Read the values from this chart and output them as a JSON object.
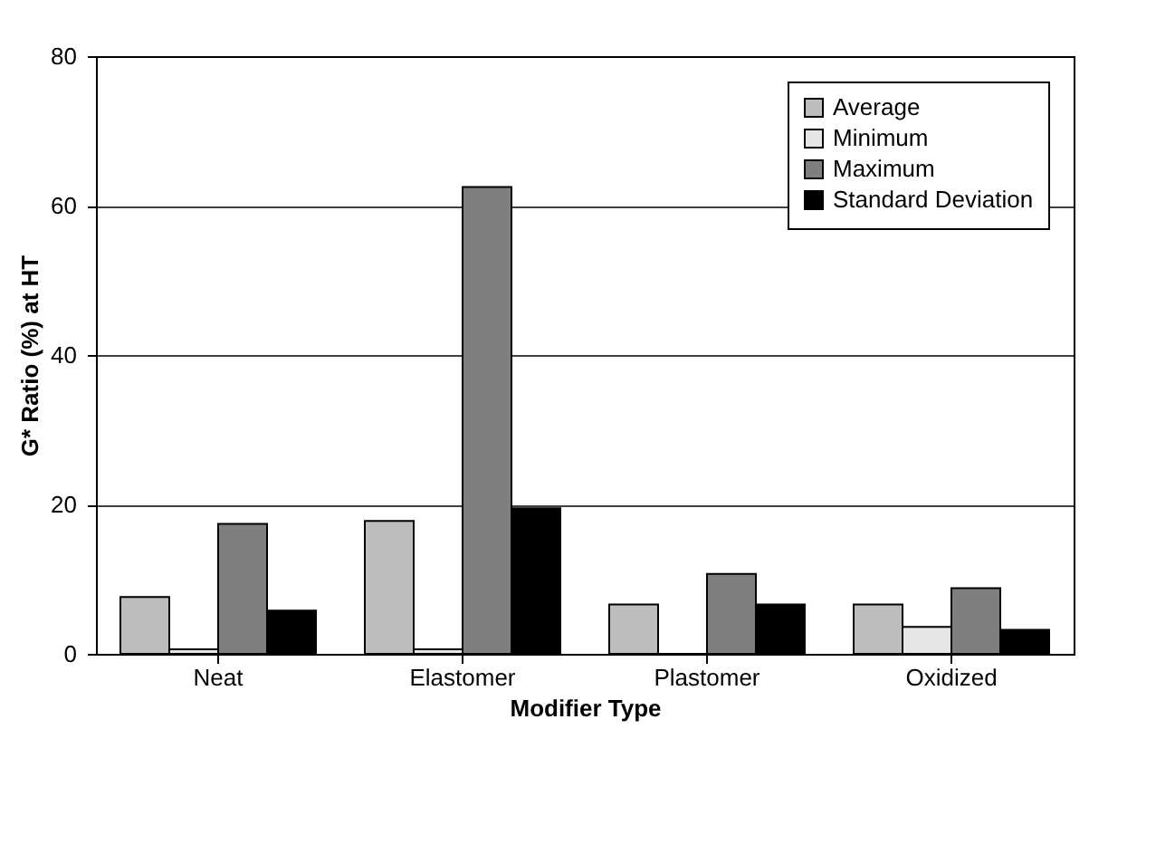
{
  "chart_data": {
    "type": "bar",
    "xlabel": "Modifier Type",
    "ylabel": "G* Ratio (%) at HT",
    "categories": [
      "Neat",
      "Elastomer",
      "Plastomer",
      "Oxidized"
    ],
    "series": [
      {
        "name": "Average",
        "color": "#bdbdbd",
        "values": [
          7.6,
          17.8,
          6.6,
          6.6
        ]
      },
      {
        "name": "Minimum",
        "color": "#e6e6e6",
        "values": [
          0.6,
          0.6,
          0,
          3.6
        ]
      },
      {
        "name": "Maximum",
        "color": "#7f7f7f",
        "values": [
          17.4,
          62.5,
          10.7,
          8.8
        ]
      },
      {
        "name": "Standard Deviation",
        "color": "#000000",
        "values": [
          5.8,
          19.5,
          6.6,
          3.2
        ]
      }
    ],
    "ylim": [
      0,
      80
    ],
    "yticks": [
      0,
      20,
      40,
      60,
      80
    ],
    "grid": "y",
    "legend": "top right"
  }
}
